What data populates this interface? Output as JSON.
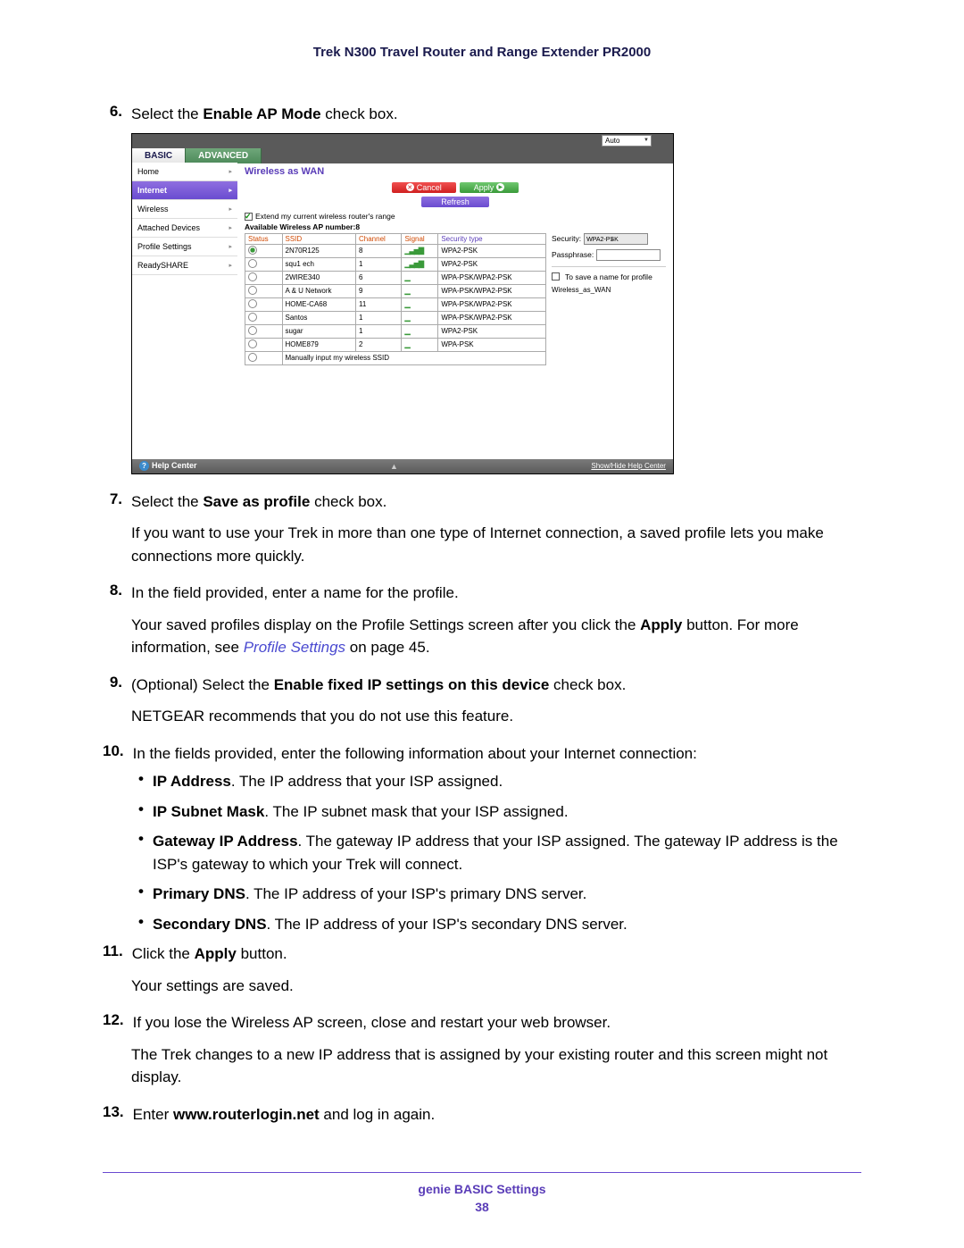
{
  "header": {
    "title": "Trek N300 Travel Router and Range Extender PR2000"
  },
  "steps": {
    "s6": {
      "num": "6.",
      "prefix": "Select the ",
      "bold": "Enable AP Mode",
      "suffix": " check box."
    },
    "s7": {
      "num": "7.",
      "prefix": "Select the ",
      "bold": "Save as profile",
      "suffix": " check box.",
      "para": "If you want to use your Trek in more than one type of Internet connection, a saved profile lets you make connections more quickly."
    },
    "s8": {
      "num": "8.",
      "text": "In the field provided, enter a name for the profile.",
      "para_pre": "Your saved profiles display on the Profile Settings screen after you click the ",
      "para_bold": "Apply",
      "para_mid": " button. For more information, see ",
      "para_link": "Profile Settings",
      "para_post": " on page 45."
    },
    "s9": {
      "num": "9.",
      "prefix": "(Optional) Select the ",
      "bold": "Enable fixed IP settings on this device",
      "suffix": " check box.",
      "para": "NETGEAR recommends that you do not use this feature."
    },
    "s10": {
      "num": "10.",
      "text": "In the fields provided, enter the following information about your Internet connection:",
      "bullets": [
        {
          "bold": "IP Address",
          "text": ". The IP address that your ISP assigned."
        },
        {
          "bold": "IP Subnet Mask",
          "text": ". The IP subnet mask that your ISP assigned."
        },
        {
          "bold": "Gateway IP Address",
          "text": ". The gateway IP address that your ISP assigned. The gateway IP address is the ISP's gateway to which your Trek will connect."
        },
        {
          "bold": "Primary DNS",
          "text": ". The IP address of your ISP's primary DNS server."
        },
        {
          "bold": "Secondary DNS",
          "text": ". The IP address of your ISP's secondary DNS server."
        }
      ]
    },
    "s11": {
      "num": "11.",
      "prefix": "Click the ",
      "bold": "Apply",
      "suffix": " button.",
      "para": "Your settings are saved."
    },
    "s12": {
      "num": "12.",
      "text": "If you lose the Wireless AP screen, close and restart your web browser.",
      "para": "The Trek changes to a new IP address that is assigned by your existing router and this screen might not display."
    },
    "s13": {
      "num": "13.",
      "prefix": "Enter ",
      "bold": "www.routerlogin.net",
      "suffix": " and log in again."
    }
  },
  "screenshot": {
    "auto": "Auto",
    "tabs": {
      "basic": "BASIC",
      "advanced": "ADVANCED"
    },
    "sidebar": [
      "Home",
      "Internet",
      "Wireless",
      "Attached Devices",
      "Profile Settings",
      "ReadySHARE"
    ],
    "main_title": "Wireless as WAN",
    "buttons": {
      "cancel": "Cancel",
      "apply": "Apply",
      "refresh": "Refresh"
    },
    "extend_row": "Extend my current wireless router's range",
    "avail": "Available Wireless AP number:8",
    "th": {
      "status": "Status",
      "ssid": "SSID",
      "channel": "Channel",
      "signal": "Signal",
      "sec": "Security type"
    },
    "rows": [
      {
        "sel": true,
        "ssid": "2N70R125",
        "ch": "8",
        "sig": 4,
        "sec": "WPA2-PSK"
      },
      {
        "sel": false,
        "ssid": "squ1 ech",
        "ch": "1",
        "sig": 4,
        "sec": "WPA2-PSK"
      },
      {
        "sel": false,
        "ssid": "2WIRE340",
        "ch": "6",
        "sig": 1,
        "sec": "WPA-PSK/WPA2-PSK"
      },
      {
        "sel": false,
        "ssid": "A & U Network",
        "ch": "9",
        "sig": 1,
        "sec": "WPA-PSK/WPA2-PSK"
      },
      {
        "sel": false,
        "ssid": "HOME-CA68",
        "ch": "11",
        "sig": 1,
        "sec": "WPA-PSK/WPA2-PSK"
      },
      {
        "sel": false,
        "ssid": "Santos",
        "ch": "1",
        "sig": 1,
        "sec": "WPA-PSK/WPA2-PSK"
      },
      {
        "sel": false,
        "ssid": "sugar",
        "ch": "1",
        "sig": 1,
        "sec": "WPA2-PSK"
      },
      {
        "sel": false,
        "ssid": "HOME879",
        "ch": "2",
        "sig": 1,
        "sec": "WPA-PSK"
      }
    ],
    "manual_row": "Manually input my wireless SSID",
    "right": {
      "security_label": "Security:",
      "security_val": "WPA2-PSK",
      "pass_label": "Passphrase:",
      "save_label": "To save a name for profile",
      "profile_name": "Wireless_as_WAN"
    },
    "footer": {
      "help": "Help Center",
      "show": "Show/Hide Help Center"
    }
  },
  "footer": {
    "title": "genie BASIC Settings",
    "page": "38"
  }
}
